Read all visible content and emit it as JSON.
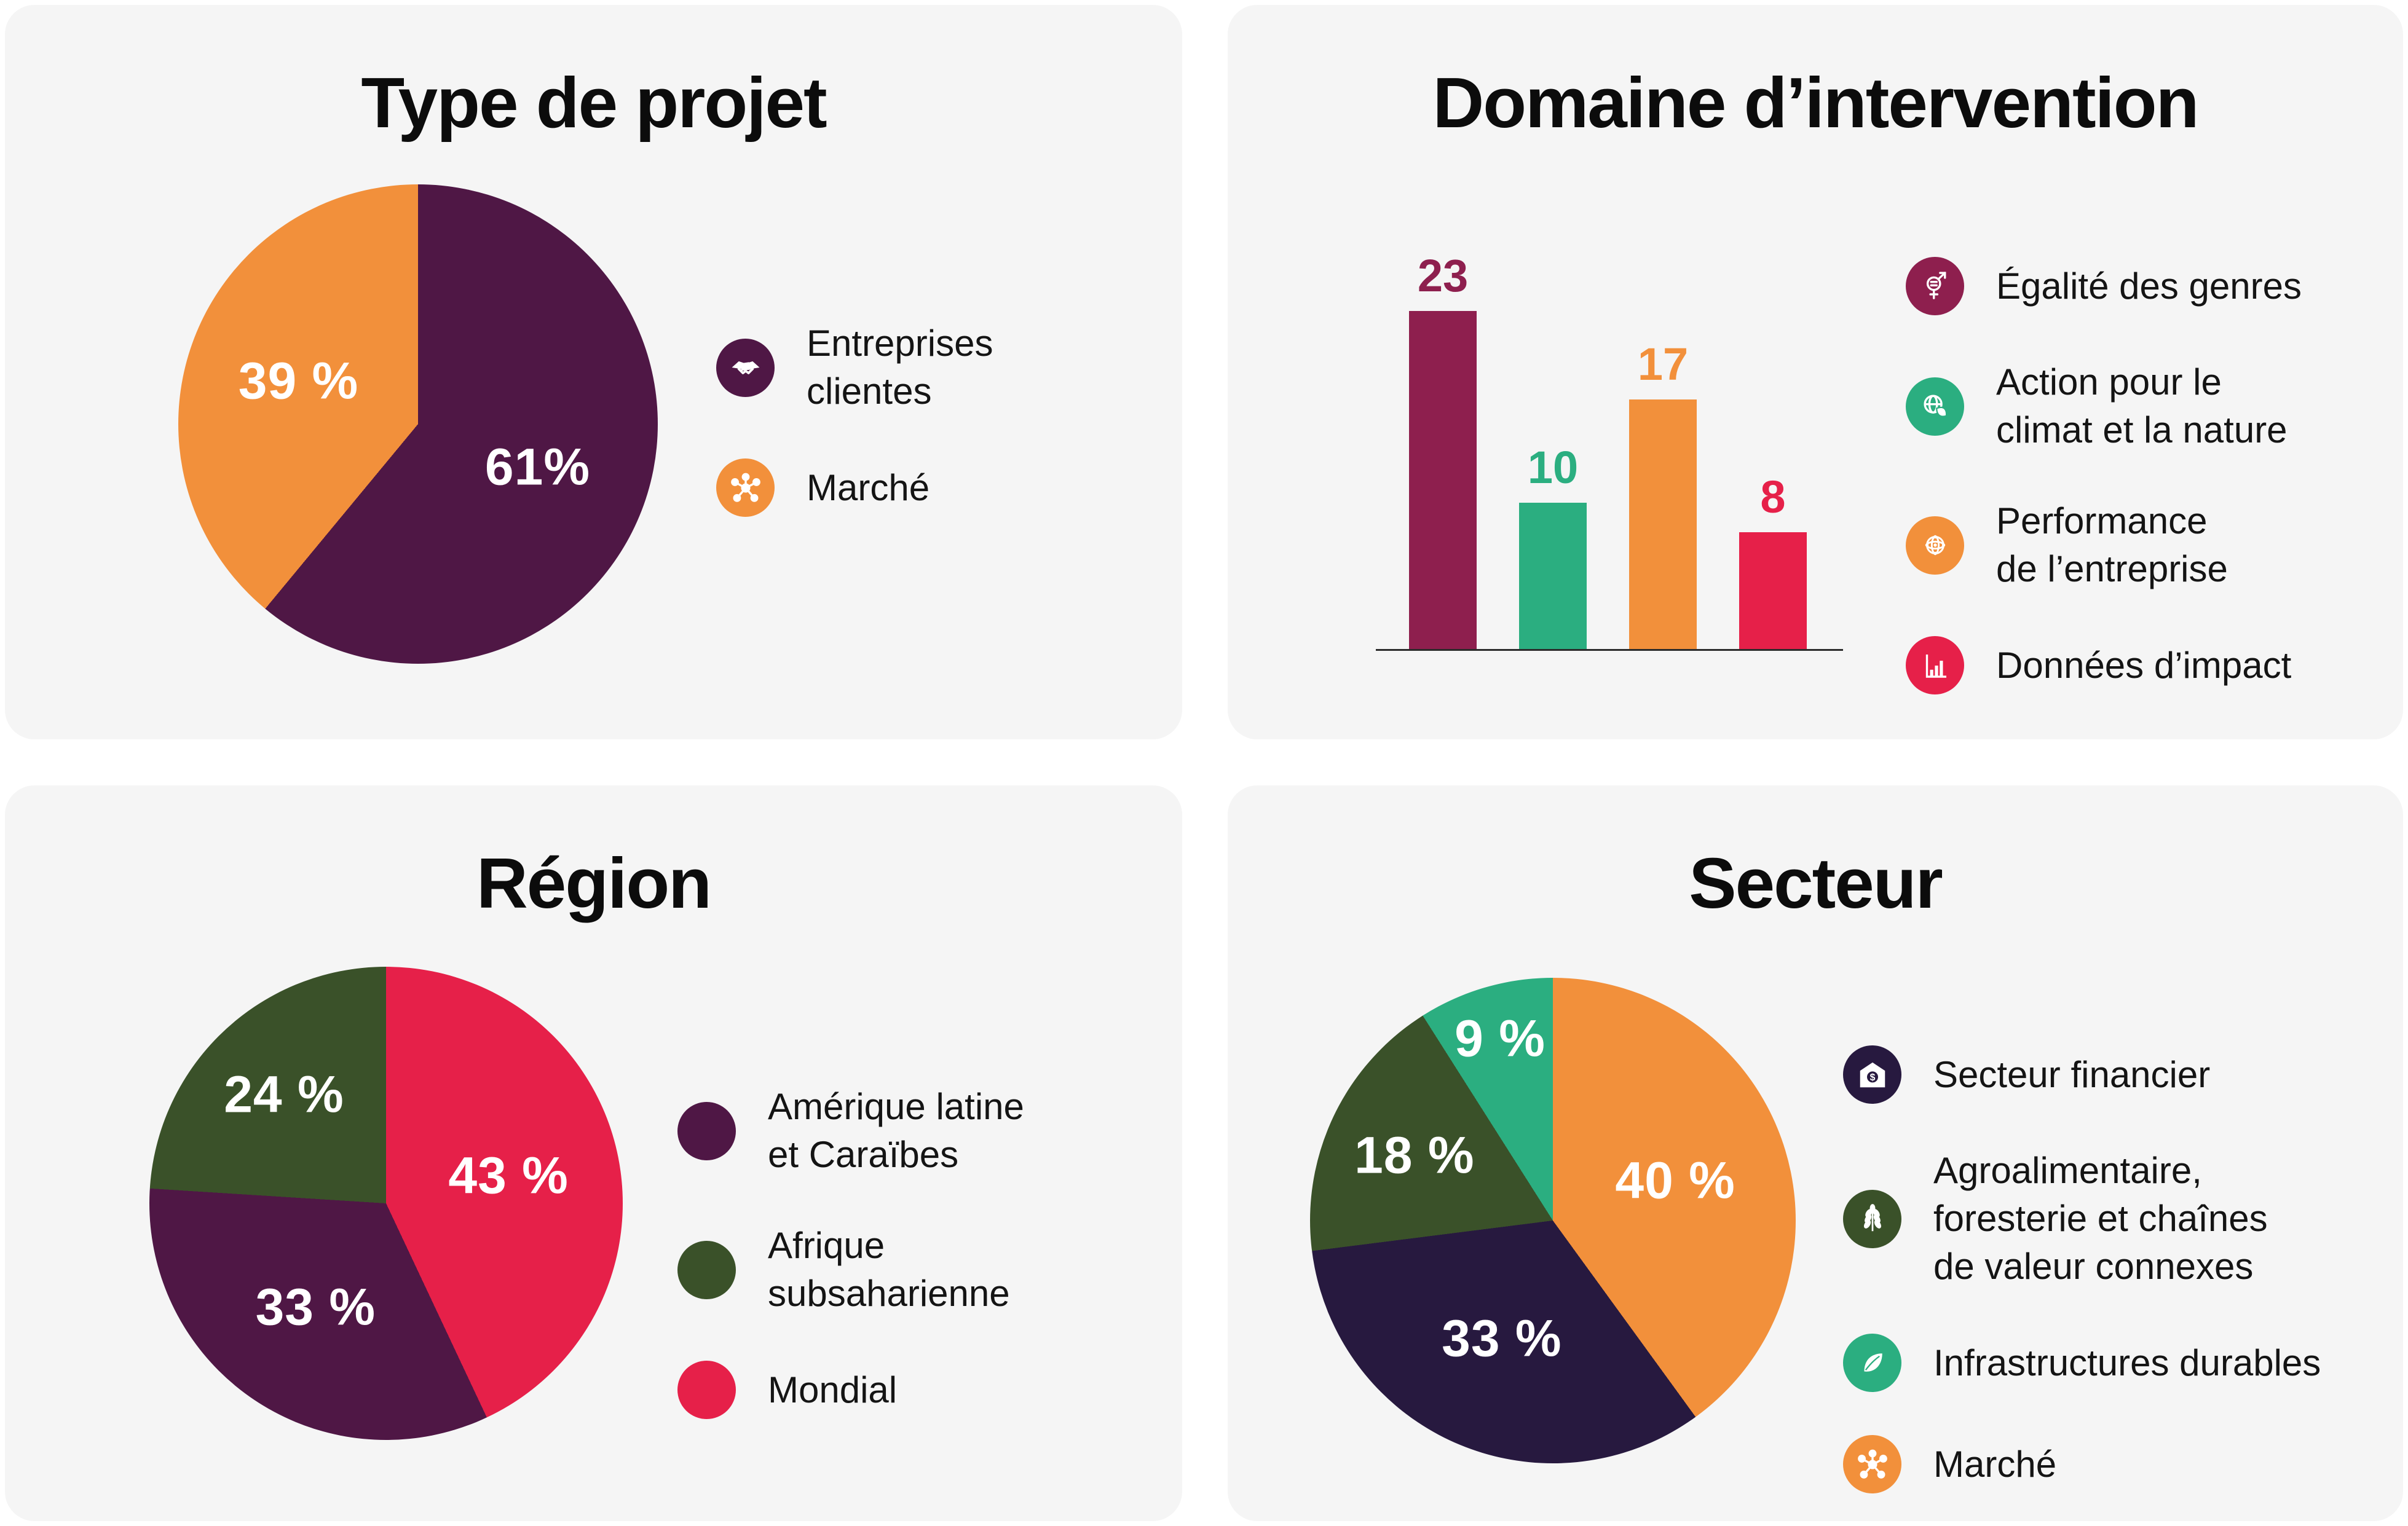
{
  "page": {
    "background": "#ffffff",
    "panel_background": "#f5f5f5"
  },
  "colors": {
    "purple": "#4f1745",
    "orange": "#f2903b",
    "burgundy": "#8e1f4e",
    "teal": "#2bae80",
    "red": "#e62049",
    "olive": "#3a5129",
    "navy": "#27193f",
    "axis": "#2b2b2b",
    "title_text": "#0c0c0c",
    "label_text": "#ffffff"
  },
  "panels": {
    "type_de_projet": {
      "title": "Type de projet",
      "slices": [
        {
          "label": "Entreprises clientes",
          "value": 61,
          "display": "61%",
          "color": "#4f1745"
        },
        {
          "label": "Marché",
          "value": 39,
          "display": "39 %",
          "color": "#f2903b"
        }
      ],
      "legend": [
        {
          "label": "Entreprises\nclientes",
          "icon": "handshake-icon",
          "color": "#4f1745"
        },
        {
          "label": "Marché",
          "icon": "network-icon",
          "color": "#f2903b"
        }
      ]
    },
    "domaine": {
      "title": "Domaine d’intervention",
      "bars": [
        {
          "label": "23",
          "value": 23,
          "name": "Égalité des genres",
          "color": "#8e1f4e"
        },
        {
          "label": "10",
          "value": 10,
          "name": "Action pour le climat et la nature",
          "color": "#2bae80"
        },
        {
          "label": "17",
          "value": 17,
          "name": "Performance de l’entreprise",
          "color": "#f2903b"
        },
        {
          "label": "8",
          "value": 8,
          "name": "Données d’impact",
          "color": "#e62049"
        }
      ],
      "legend": [
        {
          "label": "Égalité des genres",
          "icon": "gender-equality-icon",
          "color": "#8e1f4e"
        },
        {
          "label": "Action pour le\nclimat et la nature",
          "icon": "globe-leaf-icon",
          "color": "#2bae80"
        },
        {
          "label": "Performance\nde l’entreprise",
          "icon": "globe-network-icon",
          "color": "#f2903b"
        },
        {
          "label": "Données d’impact",
          "icon": "impact-bars-icon",
          "color": "#e62049"
        }
      ]
    },
    "region": {
      "title": "Région",
      "slices": [
        {
          "label": "Mondial",
          "value": 43,
          "display": "43 %",
          "color": "#e62049"
        },
        {
          "label": "Amérique latine et Caraïbes",
          "value": 33,
          "display": "33 %",
          "color": "#4f1745"
        },
        {
          "label": "Afrique subsaharienne",
          "value": 24,
          "display": "24 %",
          "color": "#3a5129"
        }
      ],
      "legend": [
        {
          "label": "Amérique latine\net Caraïbes",
          "icon": "dot",
          "color": "#4f1745"
        },
        {
          "label": "Afrique\nsubsaharienne",
          "icon": "dot",
          "color": "#3a5129"
        },
        {
          "label": "Mondial",
          "icon": "dot",
          "color": "#e62049"
        }
      ]
    },
    "secteur": {
      "title": "Secteur",
      "slices": [
        {
          "label": "Marché",
          "value": 40,
          "display": "40 %",
          "color": "#f2903b"
        },
        {
          "label": "Secteur financier",
          "value": 33,
          "display": "33 %",
          "color": "#27193f"
        },
        {
          "label": "Agroalimentaire, foresterie et chaînes de valeur connexes",
          "value": 18,
          "display": "18 %",
          "color": "#3a5129"
        },
        {
          "label": "Infrastructures durables",
          "value": 9,
          "display": "9 %",
          "color": "#2bae80"
        }
      ],
      "legend": [
        {
          "label": "Secteur financier",
          "icon": "bank-house-icon",
          "color": "#27193f"
        },
        {
          "label": "Agroalimentaire,\nforesterie et chaînes\nde valeur connexes",
          "icon": "wheat-icon",
          "color": "#3a5129"
        },
        {
          "label": "Infrastructures durables",
          "icon": "leaf-icon",
          "color": "#2bae80"
        },
        {
          "label": "Marché",
          "icon": "network-icon",
          "color": "#f2903b"
        }
      ]
    }
  },
  "chart_data": [
    {
      "type": "pie",
      "title": "Type de projet",
      "labels": [
        "Entreprises clientes",
        "Marché"
      ],
      "values": [
        61,
        39
      ],
      "unit": "percent",
      "colors": [
        "#4f1745",
        "#f2903b"
      ],
      "start_angle": "top",
      "direction": "clockwise",
      "legend_position": "right"
    },
    {
      "type": "bar",
      "title": "Domaine d’intervention",
      "categories": [
        "Égalité des genres",
        "Action pour le climat et la nature",
        "Performance de l’entreprise",
        "Données d’impact"
      ],
      "values": [
        23,
        10,
        17,
        8
      ],
      "colors": [
        "#8e1f4e",
        "#2bae80",
        "#f2903b",
        "#e62049"
      ],
      "ylim": [
        0,
        25
      ],
      "grid": false,
      "value_labels": true,
      "xlabel": "",
      "ylabel": "",
      "legend_position": "right"
    },
    {
      "type": "pie",
      "title": "Région",
      "labels": [
        "Mondial",
        "Amérique latine et Caraïbes",
        "Afrique subsaharienne"
      ],
      "values": [
        43,
        33,
        24
      ],
      "unit": "percent",
      "colors": [
        "#e62049",
        "#4f1745",
        "#3a5129"
      ],
      "start_angle": "top",
      "direction": "clockwise",
      "legend_position": "right"
    },
    {
      "type": "pie",
      "title": "Secteur",
      "labels": [
        "Marché",
        "Secteur financier",
        "Agroalimentaire, foresterie et chaînes de valeur connexes",
        "Infrastructures durables"
      ],
      "values": [
        40,
        33,
        18,
        9
      ],
      "unit": "percent",
      "colors": [
        "#f2903b",
        "#27193f",
        "#3a5129",
        "#2bae80"
      ],
      "start_angle": "top",
      "direction": "clockwise",
      "legend_position": "right"
    }
  ]
}
